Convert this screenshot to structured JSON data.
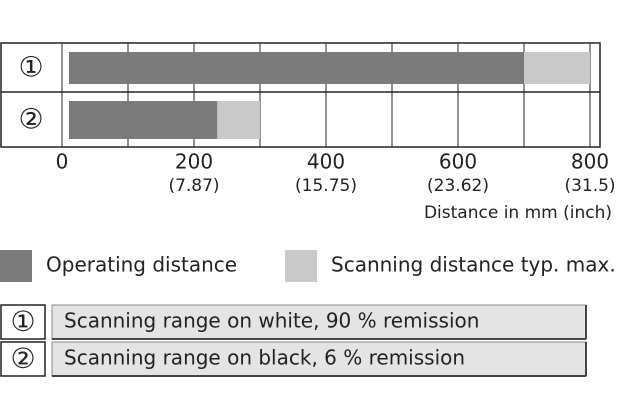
{
  "chart_data": {
    "type": "bar",
    "orientation": "horizontal",
    "categories": [
      "①",
      "②"
    ],
    "series": [
      {
        "name": "Scanning distance typ. max.",
        "color": "#c9c9c9",
        "values": [
          800,
          300
        ]
      },
      {
        "name": "Operating distance",
        "color": "#7a7a7a",
        "values": [
          700,
          235
        ]
      }
    ],
    "xlim": [
      0,
      800
    ],
    "xticks": [
      0,
      200,
      400,
      600,
      800
    ],
    "xtick_sublabels": [
      null,
      "(7.87)",
      "(15.75)",
      "(23.62)",
      "(31.5)"
    ],
    "minor_xticks": [
      100,
      300,
      500,
      700
    ],
    "x_label": "Distance in mm (inch)",
    "grid": true,
    "notes": [
      {
        "symbol": "①",
        "text": "Scanning range on white, 90 % remission"
      },
      {
        "symbol": "②",
        "text": "Scanning range on black, 6 % remission"
      }
    ]
  }
}
